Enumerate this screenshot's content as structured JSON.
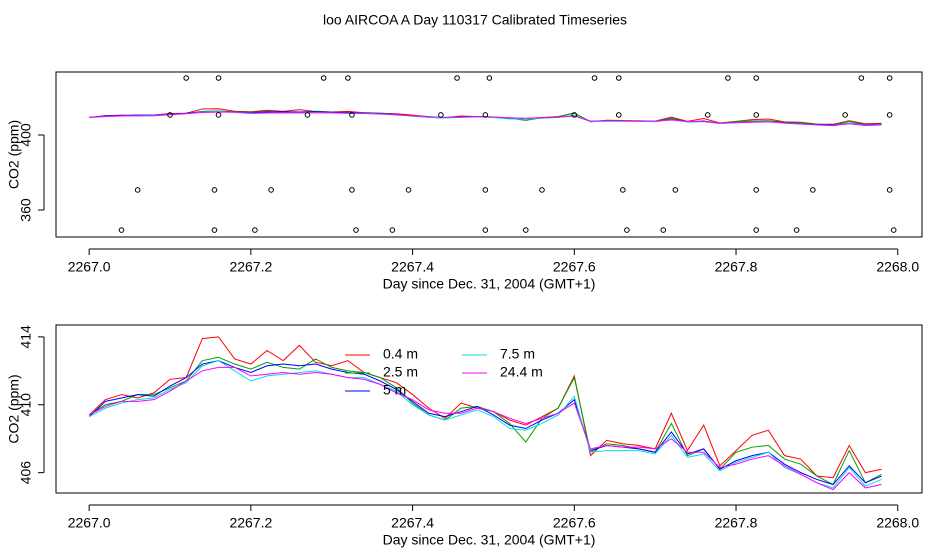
{
  "title": "loo AIRCOA A  Day 110317  Calibrated Timeseries",
  "chart_data": [
    {
      "type": "line",
      "ylabel": "CO2 (ppm)",
      "xlabel": "Day since Dec. 31, 2004 (GMT+1)",
      "xlim": [
        2266.959,
        2268.03
      ],
      "ylim": [
        345.6,
        433.6
      ],
      "xticks": [
        {
          "value": 2267,
          "label": "2267.0"
        },
        {
          "value": 2267.2,
          "label": "2267.2"
        },
        {
          "value": 2267.4,
          "label": "2267.4"
        },
        {
          "value": 2267.6,
          "label": "2267.6"
        },
        {
          "value": 2267.8,
          "label": "2267.8"
        },
        {
          "value": 2268,
          "label": "2268.0"
        }
      ],
      "yticks": [
        360,
        400
      ],
      "x": [
        2267.0,
        2267.02,
        2267.04,
        2267.06,
        2267.08,
        2267.1,
        2267.12,
        2267.14,
        2267.16,
        2267.18,
        2267.2,
        2267.22,
        2267.24,
        2267.26,
        2267.28,
        2267.3,
        2267.32,
        2267.34,
        2267.36,
        2267.38,
        2267.4,
        2267.42,
        2267.44,
        2267.46,
        2267.48,
        2267.5,
        2267.52,
        2267.54,
        2267.56,
        2267.58,
        2267.6,
        2267.62,
        2267.64,
        2267.66,
        2267.68,
        2267.7,
        2267.72,
        2267.74,
        2267.76,
        2267.78,
        2267.8,
        2267.82,
        2267.84,
        2267.86,
        2267.88,
        2267.9,
        2267.92,
        2267.94,
        2267.96,
        2267.98
      ],
      "series": [
        {
          "color": "#ff0000",
          "values": [
            409.4,
            410.3,
            410.6,
            410.4,
            410.7,
            411.5,
            411.6,
            413.9,
            414.0,
            412.7,
            412.4,
            413.2,
            412.6,
            413.5,
            412.5,
            412.3,
            412.6,
            411.9,
            411.6,
            411.3,
            410.6,
            409.8,
            409.2,
            410.1,
            409.8,
            409.6,
            409.1,
            408.8,
            409.3,
            409.8,
            411.7,
            407.0,
            407.9,
            407.7,
            407.6,
            407.4,
            409.5,
            407.3,
            408.8,
            406.4,
            407.3,
            408.2,
            408.5,
            407.0,
            406.8,
            405.8,
            405.7,
            407.6,
            406.0,
            406.2
          ]
        },
        {
          "color": "#00a000",
          "values": [
            409.4,
            410.0,
            410.2,
            410.6,
            410.6,
            411.0,
            411.4,
            412.6,
            412.8,
            412.4,
            412.1,
            412.5,
            412.2,
            412.1,
            412.7,
            412.2,
            412.0,
            411.9,
            411.6,
            411.0,
            410.1,
            409.4,
            409.1,
            409.8,
            409.9,
            409.6,
            408.9,
            407.8,
            409.2,
            409.8,
            411.6,
            407.2,
            407.7,
            407.6,
            407.4,
            407.2,
            408.9,
            407.0,
            407.4,
            406.2,
            407.2,
            407.5,
            407.6,
            406.8,
            406.5,
            405.8,
            405.3,
            407.3,
            405.4,
            405.9
          ]
        },
        {
          "color": "#0000ff",
          "values": [
            409.3,
            410.2,
            410.4,
            410.6,
            410.5,
            411.1,
            411.6,
            412.4,
            412.6,
            412.2,
            411.9,
            412.3,
            412.4,
            412.3,
            412.4,
            412.1,
            411.9,
            411.8,
            411.4,
            410.9,
            410.2,
            409.5,
            409.3,
            409.6,
            409.9,
            409.4,
            408.8,
            408.6,
            409.1,
            409.5,
            410.3,
            407.3,
            407.6,
            407.5,
            407.4,
            407.2,
            408.4,
            407.1,
            407.4,
            406.2,
            406.7,
            407.0,
            407.2,
            406.5,
            406.0,
            405.6,
            405.3,
            406.4,
            405.4,
            405.8
          ]
        },
        {
          "color": "#00e0e0",
          "values": [
            409.3,
            409.8,
            410.1,
            410.3,
            410.4,
            410.9,
            411.3,
            412.3,
            412.6,
            412.0,
            411.4,
            411.7,
            411.8,
            411.9,
            412.0,
            411.8,
            411.6,
            411.6,
            411.2,
            410.8,
            410.0,
            409.4,
            409.1,
            409.4,
            409.7,
            409.3,
            408.6,
            408.5,
            408.9,
            409.4,
            410.5,
            407.2,
            407.3,
            407.3,
            407.3,
            407.1,
            408.2,
            406.9,
            407.1,
            406.1,
            406.6,
            406.9,
            407.2,
            406.3,
            405.9,
            405.4,
            405.1,
            406.3,
            405.2,
            405.6
          ]
        },
        {
          "color": "#ff00ff",
          "values": [
            409.4,
            409.9,
            410.2,
            410.2,
            410.3,
            410.8,
            411.4,
            412.0,
            412.2,
            412.2,
            411.7,
            411.8,
            411.9,
            411.8,
            411.9,
            411.8,
            411.6,
            411.5,
            411.2,
            410.7,
            410.3,
            409.7,
            409.5,
            409.5,
            409.8,
            409.6,
            409.2,
            408.9,
            409.2,
            409.5,
            410.1,
            407.4,
            407.6,
            407.5,
            407.5,
            407.4,
            408.0,
            407.2,
            407.2,
            406.3,
            406.5,
            406.8,
            407.0,
            406.4,
            405.9,
            405.4,
            405.0,
            406.0,
            405.1,
            405.3
          ]
        }
      ],
      "points": {
        "color": "#000000",
        "x": [
          2267.12,
          2267.16,
          2267.29,
          2267.32,
          2267.455,
          2267.495,
          2267.625,
          2267.655,
          2267.79,
          2267.825,
          2267.955,
          2267.99,
          2267.1,
          2267.16,
          2267.27,
          2267.325,
          2267.435,
          2267.49,
          2267.6,
          2267.655,
          2267.765,
          2267.825,
          2267.935,
          2267.99,
          2267.06,
          2267.155,
          2267.225,
          2267.325,
          2267.395,
          2267.49,
          2267.56,
          2267.66,
          2267.725,
          2267.825,
          2267.895,
          2267.99,
          2267.04,
          2267.155,
          2267.205,
          2267.33,
          2267.375,
          2267.49,
          2267.54,
          2267.665,
          2267.71,
          2267.825,
          2267.875,
          2267.995
        ],
        "values": [
          430.4,
          430.4,
          430.4,
          430.4,
          430.4,
          430.4,
          430.4,
          430.4,
          430.4,
          430.4,
          430.4,
          430.4,
          410.7,
          410.7,
          410.7,
          410.7,
          410.7,
          410.7,
          410.7,
          410.7,
          410.7,
          410.7,
          410.7,
          410.7,
          370.7,
          370.7,
          370.7,
          370.7,
          370.7,
          370.7,
          370.7,
          370.7,
          370.7,
          370.7,
          370.7,
          370.7,
          349.3,
          349.3,
          349.3,
          349.3,
          349.3,
          349.3,
          349.3,
          349.3,
          349.3,
          349.3,
          349.3,
          349.3
        ]
      }
    },
    {
      "type": "line",
      "ylabel": "CO2 (ppm)",
      "xlabel": "Day since Dec. 31, 2004 (GMT+1)",
      "xlim": [
        2266.959,
        2268.03
      ],
      "ylim": [
        404.8,
        414.7
      ],
      "xticks": [
        {
          "value": 2267,
          "label": "2267.0"
        },
        {
          "value": 2267.2,
          "label": "2267.2"
        },
        {
          "value": 2267.4,
          "label": "2267.4"
        },
        {
          "value": 2267.6,
          "label": "2267.6"
        },
        {
          "value": 2267.8,
          "label": "2267.8"
        },
        {
          "value": 2268,
          "label": "2268.0"
        }
      ],
      "yticks": [
        406,
        410,
        414
      ],
      "legend": "top",
      "x": [
        2267.0,
        2267.02,
        2267.04,
        2267.06,
        2267.08,
        2267.1,
        2267.12,
        2267.14,
        2267.16,
        2267.18,
        2267.2,
        2267.22,
        2267.24,
        2267.26,
        2267.28,
        2267.3,
        2267.32,
        2267.34,
        2267.36,
        2267.38,
        2267.4,
        2267.42,
        2267.44,
        2267.46,
        2267.48,
        2267.5,
        2267.52,
        2267.54,
        2267.56,
        2267.58,
        2267.6,
        2267.62,
        2267.64,
        2267.66,
        2267.68,
        2267.7,
        2267.72,
        2267.74,
        2267.76,
        2267.78,
        2267.8,
        2267.82,
        2267.84,
        2267.86,
        2267.88,
        2267.9,
        2267.92,
        2267.94,
        2267.96,
        2267.98
      ],
      "series": [
        {
          "name": "0.4 m",
          "color": "#ff0000",
          "values": [
            409.4,
            410.3,
            410.6,
            410.4,
            410.7,
            411.5,
            411.6,
            413.9,
            414.0,
            412.7,
            412.4,
            413.2,
            412.6,
            413.5,
            412.5,
            412.3,
            412.6,
            411.9,
            411.6,
            411.3,
            410.6,
            409.8,
            409.2,
            410.1,
            409.8,
            409.6,
            409.1,
            408.8,
            409.3,
            409.8,
            411.7,
            407.0,
            407.9,
            407.7,
            407.6,
            407.4,
            409.5,
            407.3,
            408.8,
            406.4,
            407.3,
            408.2,
            408.5,
            407.0,
            406.8,
            405.8,
            405.7,
            407.6,
            406.0,
            406.2
          ]
        },
        {
          "name": "2.5 m",
          "color": "#00a000",
          "values": [
            409.4,
            410.0,
            410.2,
            410.6,
            410.6,
            411.0,
            411.4,
            412.6,
            412.8,
            412.4,
            412.1,
            412.5,
            412.2,
            412.1,
            412.7,
            412.2,
            412.0,
            411.9,
            411.6,
            411.0,
            410.1,
            409.4,
            409.1,
            409.8,
            409.9,
            409.6,
            408.9,
            407.8,
            409.2,
            409.8,
            411.6,
            407.2,
            407.7,
            407.6,
            407.4,
            407.2,
            408.9,
            407.0,
            407.4,
            406.2,
            407.2,
            407.5,
            407.6,
            406.8,
            406.5,
            405.8,
            405.3,
            407.3,
            405.4,
            405.9
          ]
        },
        {
          "name": "5 m",
          "color": "#0000ff",
          "values": [
            409.3,
            410.2,
            410.4,
            410.6,
            410.5,
            411.1,
            411.6,
            412.4,
            412.6,
            412.2,
            411.9,
            412.3,
            412.4,
            412.3,
            412.4,
            412.1,
            411.9,
            411.8,
            411.4,
            410.9,
            410.2,
            409.5,
            409.3,
            409.6,
            409.9,
            409.4,
            408.8,
            408.6,
            409.1,
            409.5,
            410.3,
            407.3,
            407.6,
            407.5,
            407.4,
            407.2,
            408.4,
            407.1,
            407.4,
            406.2,
            406.7,
            407.0,
            407.2,
            406.5,
            406.0,
            405.6,
            405.3,
            406.4,
            405.4,
            405.8
          ]
        },
        {
          "name": "7.5 m",
          "color": "#00e0e0",
          "values": [
            409.3,
            409.8,
            410.1,
            410.3,
            410.4,
            410.9,
            411.3,
            412.3,
            412.6,
            412.0,
            411.4,
            411.7,
            411.8,
            411.9,
            412.0,
            411.8,
            411.6,
            411.6,
            411.2,
            410.8,
            410.0,
            409.4,
            409.1,
            409.4,
            409.7,
            409.3,
            408.6,
            408.5,
            408.9,
            409.4,
            410.5,
            407.2,
            407.3,
            407.3,
            407.3,
            407.1,
            408.2,
            406.9,
            407.1,
            406.1,
            406.6,
            406.9,
            407.2,
            406.3,
            405.9,
            405.4,
            405.1,
            406.3,
            405.2,
            405.6
          ]
        },
        {
          "name": "24.4 m",
          "color": "#ff00ff",
          "values": [
            409.4,
            409.9,
            410.2,
            410.2,
            410.3,
            410.8,
            411.4,
            412.0,
            412.2,
            412.2,
            411.7,
            411.8,
            411.9,
            411.8,
            411.9,
            411.8,
            411.6,
            411.5,
            411.2,
            410.7,
            410.3,
            409.7,
            409.5,
            409.5,
            409.8,
            409.6,
            409.2,
            408.9,
            409.2,
            409.5,
            410.1,
            407.4,
            407.6,
            407.5,
            407.5,
            407.4,
            408.0,
            407.2,
            407.2,
            406.3,
            406.5,
            406.8,
            407.0,
            406.4,
            405.9,
            405.4,
            405.0,
            406.0,
            405.1,
            405.3
          ]
        }
      ]
    }
  ]
}
